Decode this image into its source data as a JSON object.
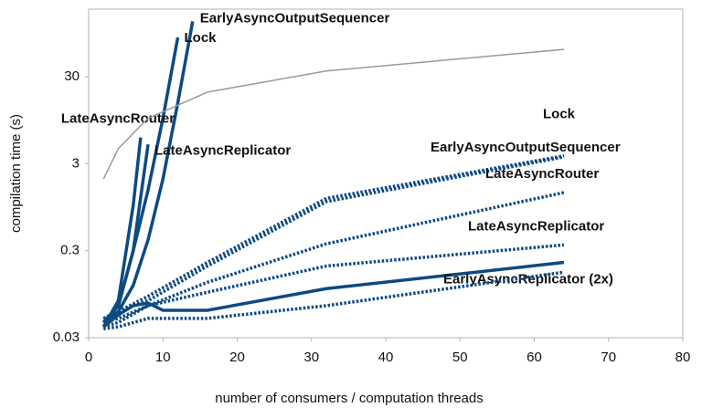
{
  "chart_data": {
    "type": "line",
    "log_y": true,
    "xlabel": "number of consumers / computation threads",
    "ylabel": "compilation time (s)",
    "xlim": [
      0,
      80
    ],
    "xticks": [
      0,
      10,
      20,
      30,
      40,
      50,
      60,
      70,
      80
    ],
    "ylim": [
      0.03,
      180
    ],
    "yticks": [
      0.03,
      0.3,
      3,
      30
    ],
    "series": [
      {
        "name": "EarlyAsyncOutputSequencer",
        "color": "#0d4a82",
        "style": "solid",
        "x": [
          2,
          4,
          6,
          8,
          10,
          12,
          14
        ],
        "values": [
          0.045,
          0.06,
          0.12,
          0.4,
          2,
          15,
          130
        ]
      },
      {
        "name": "Lock",
        "color": "#0d4a82",
        "style": "solid",
        "x": [
          2,
          4,
          6,
          8,
          10,
          12
        ],
        "values": [
          0.045,
          0.07,
          0.3,
          1.5,
          10,
          85
        ]
      },
      {
        "name": "LateAsyncRouter",
        "color": "#0d4a82",
        "style": "solid",
        "x": [
          2,
          4,
          6,
          7
        ],
        "values": [
          0.04,
          0.08,
          1,
          6
        ]
      },
      {
        "name": "LateAsyncReplicator",
        "color": "#0d4a82",
        "style": "solid",
        "x": [
          2,
          4,
          6,
          8
        ],
        "values": [
          0.045,
          0.07,
          0.3,
          5
        ]
      },
      {
        "name": "EarlyAsyncReplicator (2x)",
        "color": "#0d4a82",
        "style": "solid",
        "x": [
          2,
          4,
          6,
          8,
          10,
          16,
          32,
          64
        ],
        "values": [
          0.04,
          0.055,
          0.07,
          0.075,
          0.062,
          0.062,
          0.11,
          0.22
        ]
      },
      {
        "name": "Lock",
        "color": "#0d4a82",
        "style": "dotted",
        "x": [
          2,
          4,
          8,
          16,
          32,
          64
        ],
        "values": [
          0.05,
          0.06,
          0.09,
          0.22,
          1.2,
          3.7
        ]
      },
      {
        "name": "EarlyAsyncOutputSequencer",
        "color": "#0d4a82",
        "style": "dotted",
        "x": [
          2,
          4,
          8,
          16,
          32,
          64
        ],
        "values": [
          0.05,
          0.06,
          0.08,
          0.2,
          1.1,
          3.6
        ]
      },
      {
        "name": "LateAsyncRouter",
        "color": "#0d4a82",
        "style": "dotted",
        "x": [
          2,
          4,
          8,
          16,
          32,
          64
        ],
        "values": [
          0.045,
          0.05,
          0.07,
          0.13,
          0.36,
          1.4
        ]
      },
      {
        "name": "LateAsyncReplicator",
        "color": "#0d4a82",
        "style": "dotted",
        "x": [
          2,
          4,
          8,
          16,
          32,
          64
        ],
        "values": [
          0.04,
          0.045,
          0.07,
          0.1,
          0.2,
          0.35
        ]
      },
      {
        "color": "#0d4a82",
        "style": "dotted",
        "x": [
          2,
          4,
          8,
          16,
          32,
          64
        ],
        "values": [
          0.038,
          0.04,
          0.05,
          0.05,
          0.07,
          0.17
        ]
      },
      {
        "color": "#999999",
        "style": "thin",
        "x": [
          2,
          4,
          8,
          16,
          32,
          64
        ],
        "values": [
          2,
          4.5,
          10,
          20,
          35,
          62
        ]
      }
    ]
  }
}
